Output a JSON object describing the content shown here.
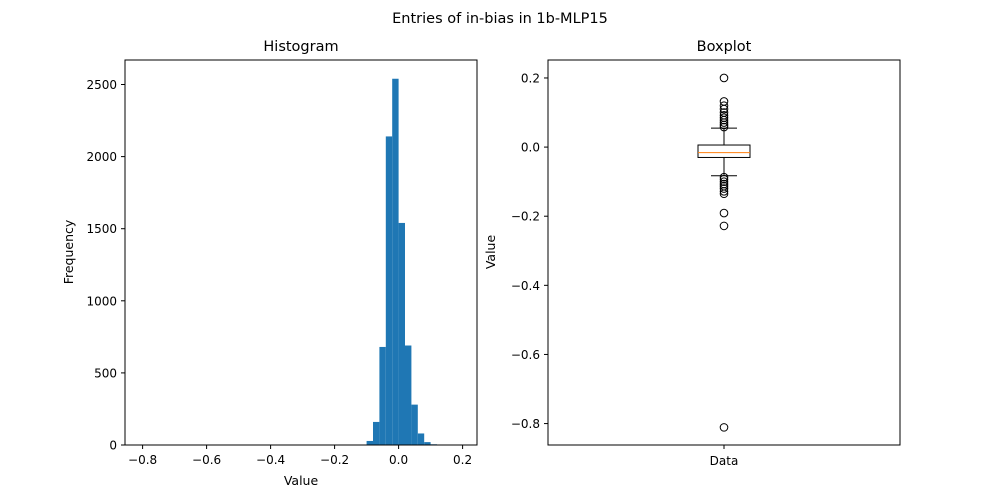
{
  "figure": {
    "suptitle": "Entries of in-bias in 1b-MLP15"
  },
  "chart_data": [
    {
      "type": "bar",
      "subtype": "histogram",
      "title": "Histogram",
      "xlabel": "Value",
      "ylabel": "Frequency",
      "xlim": [
        -0.855,
        0.245
      ],
      "ylim": [
        0,
        2670
      ],
      "xticks": [
        -0.8,
        -0.6,
        -0.4,
        -0.2,
        0.0,
        0.2
      ],
      "xtick_labels": [
        "−0.8",
        "−0.6",
        "−0.4",
        "−0.2",
        "0.0",
        "0.2"
      ],
      "yticks": [
        0,
        500,
        1000,
        1500,
        2000,
        2500
      ],
      "ytick_labels": [
        "0",
        "500",
        "1000",
        "1500",
        "2000",
        "2500"
      ],
      "bins": [
        {
          "x0": -0.12,
          "x1": -0.1,
          "count": 3
        },
        {
          "x0": -0.1,
          "x1": -0.08,
          "count": 28
        },
        {
          "x0": -0.08,
          "x1": -0.06,
          "count": 160
        },
        {
          "x0": -0.06,
          "x1": -0.04,
          "count": 680
        },
        {
          "x0": -0.04,
          "x1": -0.02,
          "count": 2140
        },
        {
          "x0": -0.02,
          "x1": 0.0,
          "count": 2540
        },
        {
          "x0": 0.0,
          "x1": 0.02,
          "count": 1540
        },
        {
          "x0": 0.02,
          "x1": 0.04,
          "count": 690
        },
        {
          "x0": 0.04,
          "x1": 0.06,
          "count": 280
        },
        {
          "x0": 0.06,
          "x1": 0.08,
          "count": 80
        },
        {
          "x0": 0.08,
          "x1": 0.1,
          "count": 20
        },
        {
          "x0": 0.1,
          "x1": 0.12,
          "count": 5
        }
      ],
      "color": "#1f77b4"
    },
    {
      "type": "boxplot",
      "title": "Boxplot",
      "xlabel": "",
      "ylabel": "Value",
      "categories": [
        "Data"
      ],
      "ylim": [
        -0.862,
        0.252
      ],
      "yticks": [
        -0.8,
        -0.6,
        -0.4,
        -0.2,
        0.0,
        0.2
      ],
      "ytick_labels": [
        "−0.8",
        "−0.6",
        "−0.4",
        "−0.2",
        "0.0",
        "0.2"
      ],
      "stats": {
        "whisker_low": -0.083,
        "q1": -0.03,
        "median": -0.016,
        "q3": 0.006,
        "whisker_high": 0.055
      },
      "outliers": [
        0.2,
        0.132,
        0.12,
        0.11,
        0.1,
        0.092,
        0.085,
        0.078,
        0.071,
        0.064,
        0.058,
        -0.087,
        -0.093,
        -0.1,
        -0.107,
        -0.113,
        -0.12,
        -0.128,
        -0.135,
        -0.191,
        -0.228,
        -0.811
      ],
      "box_color": "#000000",
      "median_color": "#ff7f0e"
    }
  ]
}
